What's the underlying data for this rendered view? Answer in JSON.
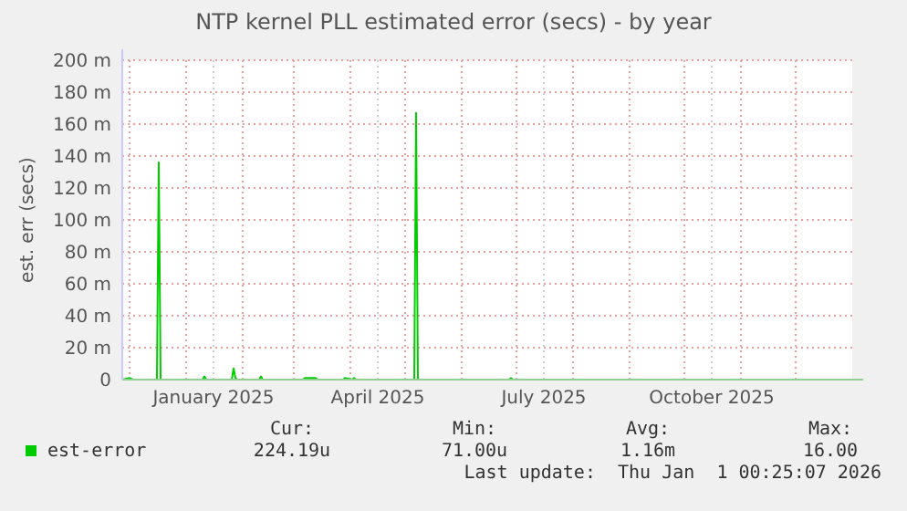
{
  "chart_data": {
    "type": "line",
    "title": "NTP kernel PLL estimated error (secs) - by year",
    "ylabel": "est. err (secs)",
    "xlim": [
      "2024-11-27",
      "2026-01-01"
    ],
    "xticks": [
      {
        "value": "2024-12-01",
        "label": null
      },
      {
        "value": "2025-01-01",
        "label": null
      },
      {
        "value": "2025-01-16",
        "label": "January 2025"
      },
      {
        "value": "2025-02-01",
        "label": null
      },
      {
        "value": "2025-03-01",
        "label": null
      },
      {
        "value": "2025-04-01",
        "label": null
      },
      {
        "value": "2025-04-16",
        "label": "April 2025"
      },
      {
        "value": "2025-05-01",
        "label": null
      },
      {
        "value": "2025-06-01",
        "label": null
      },
      {
        "value": "2025-07-01",
        "label": null
      },
      {
        "value": "2025-07-16",
        "label": "July 2025"
      },
      {
        "value": "2025-08-01",
        "label": null
      },
      {
        "value": "2025-09-01",
        "label": null
      },
      {
        "value": "2025-10-01",
        "label": null
      },
      {
        "value": "2025-10-16",
        "label": "October 2025"
      },
      {
        "value": "2025-11-01",
        "label": null
      },
      {
        "value": "2025-12-01",
        "label": null
      }
    ],
    "ylim": [
      0,
      200
    ],
    "yticks": [
      0,
      {
        "value": 20,
        "label": "20 m"
      },
      {
        "value": 40,
        "label": "40 m"
      },
      {
        "value": 60,
        "label": "60 m"
      },
      {
        "value": 80,
        "label": "80 m"
      },
      {
        "value": 100,
        "label": "100 m"
      },
      {
        "value": 120,
        "label": "120 m"
      },
      {
        "value": 140,
        "label": "140 m"
      },
      {
        "value": 160,
        "label": "160 m"
      },
      {
        "value": 180,
        "label": "180 m"
      },
      {
        "value": 200,
        "label": "200 m"
      }
    ],
    "grid": true,
    "legend": "bottom",
    "marker": "none",
    "line_style": "solid",
    "series": [
      {
        "name": "est-error",
        "color": "#00cc00",
        "x": [
          "2024-11-27",
          "2024-12-01",
          "2024-12-03",
          "2024-12-16",
          "2024-12-17",
          "2024-12-18",
          "2025-01-10",
          "2025-01-11",
          "2025-01-12",
          "2025-01-26",
          "2025-01-27",
          "2025-01-28",
          "2025-01-29",
          "2025-02-10",
          "2025-02-11",
          "2025-02-12",
          "2025-03-06",
          "2025-03-07",
          "2025-03-13",
          "2025-03-14",
          "2025-03-28",
          "2025-03-29",
          "2025-04-02",
          "2025-04-03",
          "2025-04-04",
          "2025-05-06",
          "2025-05-07",
          "2025-05-08",
          "2025-06-27",
          "2025-06-28",
          "2025-06-29",
          "2026-01-01"
        ],
        "values": [
          0,
          1,
          0,
          0,
          136,
          0,
          0,
          2,
          0,
          0,
          7,
          1,
          0,
          0,
          2,
          0,
          0,
          1,
          1,
          0,
          0,
          1,
          0,
          1,
          0,
          0,
          167,
          0,
          0,
          1,
          0,
          0
        ]
      }
    ],
    "annotations": [
      "Cur:",
      "Min:",
      "Avg:",
      "Max:",
      "224.19u",
      "71.00u",
      "1.16m",
      "16.00",
      "Last update:  Thu Jan  1 00:25:07 2026"
    ]
  }
}
